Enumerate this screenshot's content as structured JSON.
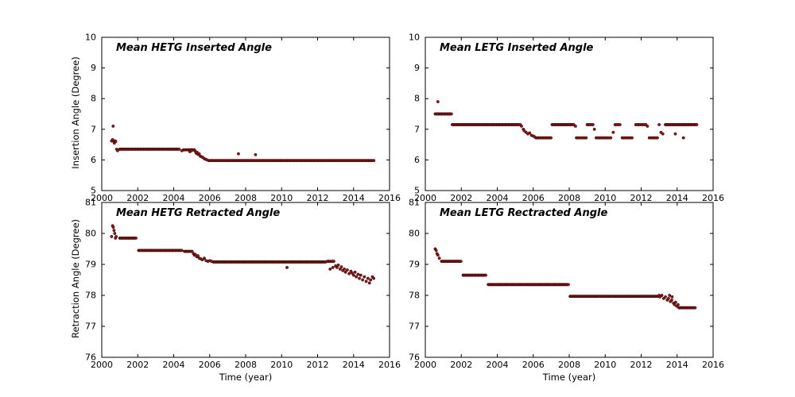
{
  "figure": {
    "background": "#ffffff",
    "frame_color": "#000000"
  },
  "chart_data": [
    {
      "type": "scatter",
      "name": "hetg-inserted",
      "title": "Mean HETG Inserted Angle",
      "xlabel": "",
      "ylabel": "Insertion Angle (Degree)",
      "xlim": [
        2000,
        2016
      ],
      "ylim": [
        5,
        10
      ],
      "xticks": [
        2000,
        2002,
        2004,
        2006,
        2008,
        2010,
        2012,
        2014,
        2016
      ],
      "yticks": [
        5,
        6,
        7,
        8,
        9,
        10
      ],
      "grid": false,
      "marker_color": "#8b1a1a",
      "marker_edge": "#2b0000",
      "runs": [
        [
          2001.0,
          2004.35,
          6.35,
          0.06
        ],
        [
          2004.55,
          2005.15,
          6.33,
          0.06
        ],
        [
          2005.95,
          2015.15,
          5.98,
          0.06
        ]
      ],
      "points": [
        [
          2000.55,
          6.62
        ],
        [
          2000.6,
          6.66
        ],
        [
          2000.63,
          7.1
        ],
        [
          2000.67,
          6.6
        ],
        [
          2000.7,
          6.55
        ],
        [
          2000.74,
          6.62
        ],
        [
          2000.78,
          6.6
        ],
        [
          2000.83,
          6.35
        ],
        [
          2000.88,
          6.3
        ],
        [
          2004.45,
          6.3
        ],
        [
          2004.9,
          6.27
        ],
        [
          2005.0,
          6.3
        ],
        [
          2005.2,
          6.28
        ],
        [
          2005.25,
          6.22
        ],
        [
          2005.3,
          6.25
        ],
        [
          2005.35,
          6.18
        ],
        [
          2005.42,
          6.2
        ],
        [
          2005.48,
          6.12
        ],
        [
          2005.55,
          6.1
        ],
        [
          2005.62,
          6.08
        ],
        [
          2005.7,
          6.04
        ],
        [
          2005.78,
          6.02
        ],
        [
          2005.85,
          6.0
        ],
        [
          2007.6,
          6.2
        ],
        [
          2008.55,
          6.17
        ]
      ]
    },
    {
      "type": "scatter",
      "name": "letg-inserted",
      "title": "Mean LETG Inserted Angle",
      "xlabel": "",
      "ylabel": "",
      "xlim": [
        2000,
        2016
      ],
      "ylim": [
        5,
        10
      ],
      "xticks": [
        2000,
        2002,
        2004,
        2006,
        2008,
        2010,
        2012,
        2014,
        2016
      ],
      "yticks": [
        5,
        6,
        7,
        8,
        9,
        10
      ],
      "grid": false,
      "marker_color": "#8b1a1a",
      "marker_edge": "#2b0000",
      "runs": [
        [
          2000.55,
          2001.45,
          7.5,
          0.06
        ],
        [
          2001.5,
          2005.3,
          7.15,
          0.06
        ],
        [
          2006.15,
          2007.0,
          6.72,
          0.07
        ],
        [
          2007.05,
          2008.3,
          7.15,
          0.06
        ],
        [
          2008.4,
          2008.95,
          6.72,
          0.09
        ],
        [
          2009.0,
          2009.35,
          7.15,
          0.08
        ],
        [
          2009.5,
          2010.35,
          6.72,
          0.09
        ],
        [
          2010.55,
          2010.85,
          7.15,
          0.09
        ],
        [
          2010.95,
          2011.55,
          6.72,
          0.09
        ],
        [
          2011.7,
          2012.3,
          7.15,
          0.08
        ],
        [
          2012.45,
          2012.95,
          6.72,
          0.09
        ],
        [
          2013.35,
          2015.1,
          7.15,
          0.06
        ]
      ],
      "points": [
        [
          2000.7,
          7.9
        ],
        [
          2005.35,
          7.1
        ],
        [
          2005.45,
          7.0
        ],
        [
          2005.5,
          6.95
        ],
        [
          2005.6,
          6.9
        ],
        [
          2005.7,
          6.85
        ],
        [
          2005.8,
          6.88
        ],
        [
          2005.9,
          6.8
        ],
        [
          2006.0,
          6.78
        ],
        [
          2006.08,
          6.75
        ],
        [
          2008.35,
          7.1
        ],
        [
          2009.4,
          7.0
        ],
        [
          2010.45,
          6.9
        ],
        [
          2012.35,
          7.1
        ],
        [
          2013.0,
          7.15
        ],
        [
          2013.1,
          6.9
        ],
        [
          2013.2,
          6.85
        ],
        [
          2013.9,
          6.85
        ],
        [
          2014.35,
          6.72
        ]
      ]
    },
    {
      "type": "scatter",
      "name": "hetg-retracted",
      "title": "Mean HETG Retracted Angle",
      "xlabel": "Time (year)",
      "ylabel": "Retraction Angle (Degree)",
      "xlim": [
        2000,
        2016
      ],
      "ylim": [
        76,
        81
      ],
      "xticks": [
        2000,
        2002,
        2004,
        2006,
        2008,
        2010,
        2012,
        2014,
        2016
      ],
      "yticks": [
        76,
        77,
        78,
        79,
        80,
        81
      ],
      "grid": false,
      "marker_color": "#8b1a1a",
      "marker_edge": "#2b0000",
      "runs": [
        [
          2001.0,
          2001.95,
          79.85,
          0.06
        ],
        [
          2002.05,
          2004.5,
          79.45,
          0.06
        ],
        [
          2004.6,
          2005.05,
          79.42,
          0.06
        ],
        [
          2006.2,
          2012.45,
          79.08,
          0.05
        ],
        [
          2012.55,
          2012.95,
          79.1,
          0.07
        ]
      ],
      "points": [
        [
          2000.55,
          79.9
        ],
        [
          2000.6,
          80.25
        ],
        [
          2000.64,
          80.2
        ],
        [
          2000.68,
          80.1
        ],
        [
          2000.72,
          80.0
        ],
        [
          2000.76,
          79.85
        ],
        [
          2000.8,
          79.9
        ],
        [
          2005.1,
          79.35
        ],
        [
          2005.15,
          79.3
        ],
        [
          2005.2,
          79.32
        ],
        [
          2005.28,
          79.25
        ],
        [
          2005.35,
          79.28
        ],
        [
          2005.42,
          79.2
        ],
        [
          2005.5,
          79.18
        ],
        [
          2005.6,
          79.15
        ],
        [
          2005.7,
          79.2
        ],
        [
          2005.8,
          79.12
        ],
        [
          2005.9,
          79.1
        ],
        [
          2006.0,
          79.12
        ],
        [
          2006.1,
          79.1
        ],
        [
          2010.3,
          78.9
        ],
        [
          2012.7,
          78.85
        ],
        [
          2012.85,
          78.9
        ],
        [
          2013.0,
          78.95
        ],
        [
          2013.08,
          78.9
        ],
        [
          2013.15,
          78.98
        ],
        [
          2013.25,
          78.85
        ],
        [
          2013.32,
          78.92
        ],
        [
          2013.4,
          78.8
        ],
        [
          2013.48,
          78.85
        ],
        [
          2013.55,
          78.75
        ],
        [
          2013.65,
          78.82
        ],
        [
          2013.75,
          78.7
        ],
        [
          2013.85,
          78.78
        ],
        [
          2013.92,
          78.72
        ],
        [
          2014.0,
          78.65
        ],
        [
          2014.08,
          78.75
        ],
        [
          2014.15,
          78.6
        ],
        [
          2014.25,
          78.68
        ],
        [
          2014.32,
          78.55
        ],
        [
          2014.4,
          78.65
        ],
        [
          2014.5,
          78.5
        ],
        [
          2014.6,
          78.6
        ],
        [
          2014.7,
          78.45
        ],
        [
          2014.8,
          78.55
        ],
        [
          2014.88,
          78.4
        ],
        [
          2014.95,
          78.5
        ],
        [
          2015.05,
          78.6
        ],
        [
          2015.12,
          78.55
        ]
      ]
    },
    {
      "type": "scatter",
      "name": "letg-retracted",
      "title": "Mean LETG Rectracted Angle",
      "xlabel": "Time (year)",
      "ylabel": "",
      "xlim": [
        2000,
        2016
      ],
      "ylim": [
        76,
        81
      ],
      "xticks": [
        2000,
        2002,
        2004,
        2006,
        2008,
        2010,
        2012,
        2014,
        2016
      ],
      "yticks": [
        76,
        77,
        78,
        79,
        80,
        81
      ],
      "grid": false,
      "marker_color": "#8b1a1a",
      "marker_edge": "#2b0000",
      "runs": [
        [
          2000.9,
          2002.0,
          79.1,
          0.06
        ],
        [
          2002.1,
          2003.4,
          78.65,
          0.06
        ],
        [
          2003.5,
          2007.95,
          78.35,
          0.05
        ],
        [
          2008.05,
          2012.95,
          77.97,
          0.05
        ],
        [
          2014.1,
          2015.05,
          77.6,
          0.06
        ]
      ],
      "points": [
        [
          2000.55,
          79.5
        ],
        [
          2000.6,
          79.45
        ],
        [
          2000.65,
          79.35
        ],
        [
          2000.7,
          79.3
        ],
        [
          2000.78,
          79.2
        ],
        [
          2013.0,
          78.0
        ],
        [
          2013.05,
          77.95
        ],
        [
          2013.15,
          78.0
        ],
        [
          2013.25,
          77.9
        ],
        [
          2013.35,
          77.95
        ],
        [
          2013.45,
          77.85
        ],
        [
          2013.52,
          77.9
        ],
        [
          2013.58,
          78.0
        ],
        [
          2013.62,
          77.8
        ],
        [
          2013.7,
          77.85
        ],
        [
          2013.72,
          77.95
        ],
        [
          2013.8,
          77.75
        ],
        [
          2013.85,
          77.7
        ],
        [
          2013.92,
          77.78
        ],
        [
          2013.98,
          77.65
        ],
        [
          2014.05,
          77.7
        ]
      ]
    }
  ]
}
